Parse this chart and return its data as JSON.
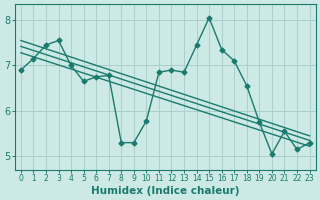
{
  "xlabel": "Humidex (Indice chaleur)",
  "xlim": [
    -0.5,
    23.5
  ],
  "ylim": [
    4.7,
    8.35
  ],
  "xticks": [
    0,
    1,
    2,
    3,
    4,
    5,
    6,
    7,
    8,
    9,
    10,
    11,
    12,
    13,
    14,
    15,
    16,
    17,
    18,
    19,
    20,
    21,
    22,
    23
  ],
  "yticks": [
    5,
    6,
    7,
    8
  ],
  "line_color": "#1a7a6e",
  "bg_color": "#cce9e5",
  "grid_color": "#aacfca",
  "line1_x": [
    0,
    1,
    2,
    3,
    4,
    5,
    6,
    7,
    8,
    9,
    10,
    11,
    12,
    13,
    14,
    15,
    16,
    17,
    18,
    19,
    20,
    21,
    22,
    23
  ],
  "line1_y": [
    6.9,
    7.15,
    7.45,
    7.55,
    7.0,
    6.65,
    6.75,
    6.78,
    5.3,
    5.3,
    5.78,
    6.85,
    6.9,
    6.85,
    7.45,
    8.05,
    7.35,
    7.1,
    6.55,
    5.75,
    5.05,
    5.55,
    5.15,
    5.3
  ],
  "line2_x": [
    0,
    23
  ],
  "line2_y": [
    7.55,
    5.45
  ],
  "line3_x": [
    0,
    23
  ],
  "line3_y": [
    7.42,
    5.35
  ],
  "line4_x": [
    0,
    23
  ],
  "line4_y": [
    7.28,
    5.22
  ],
  "markersize": 2.5,
  "linewidth": 1.0,
  "tick_fontsize_x": 5.5,
  "tick_fontsize_y": 7.0,
  "xlabel_fontsize": 7.5
}
